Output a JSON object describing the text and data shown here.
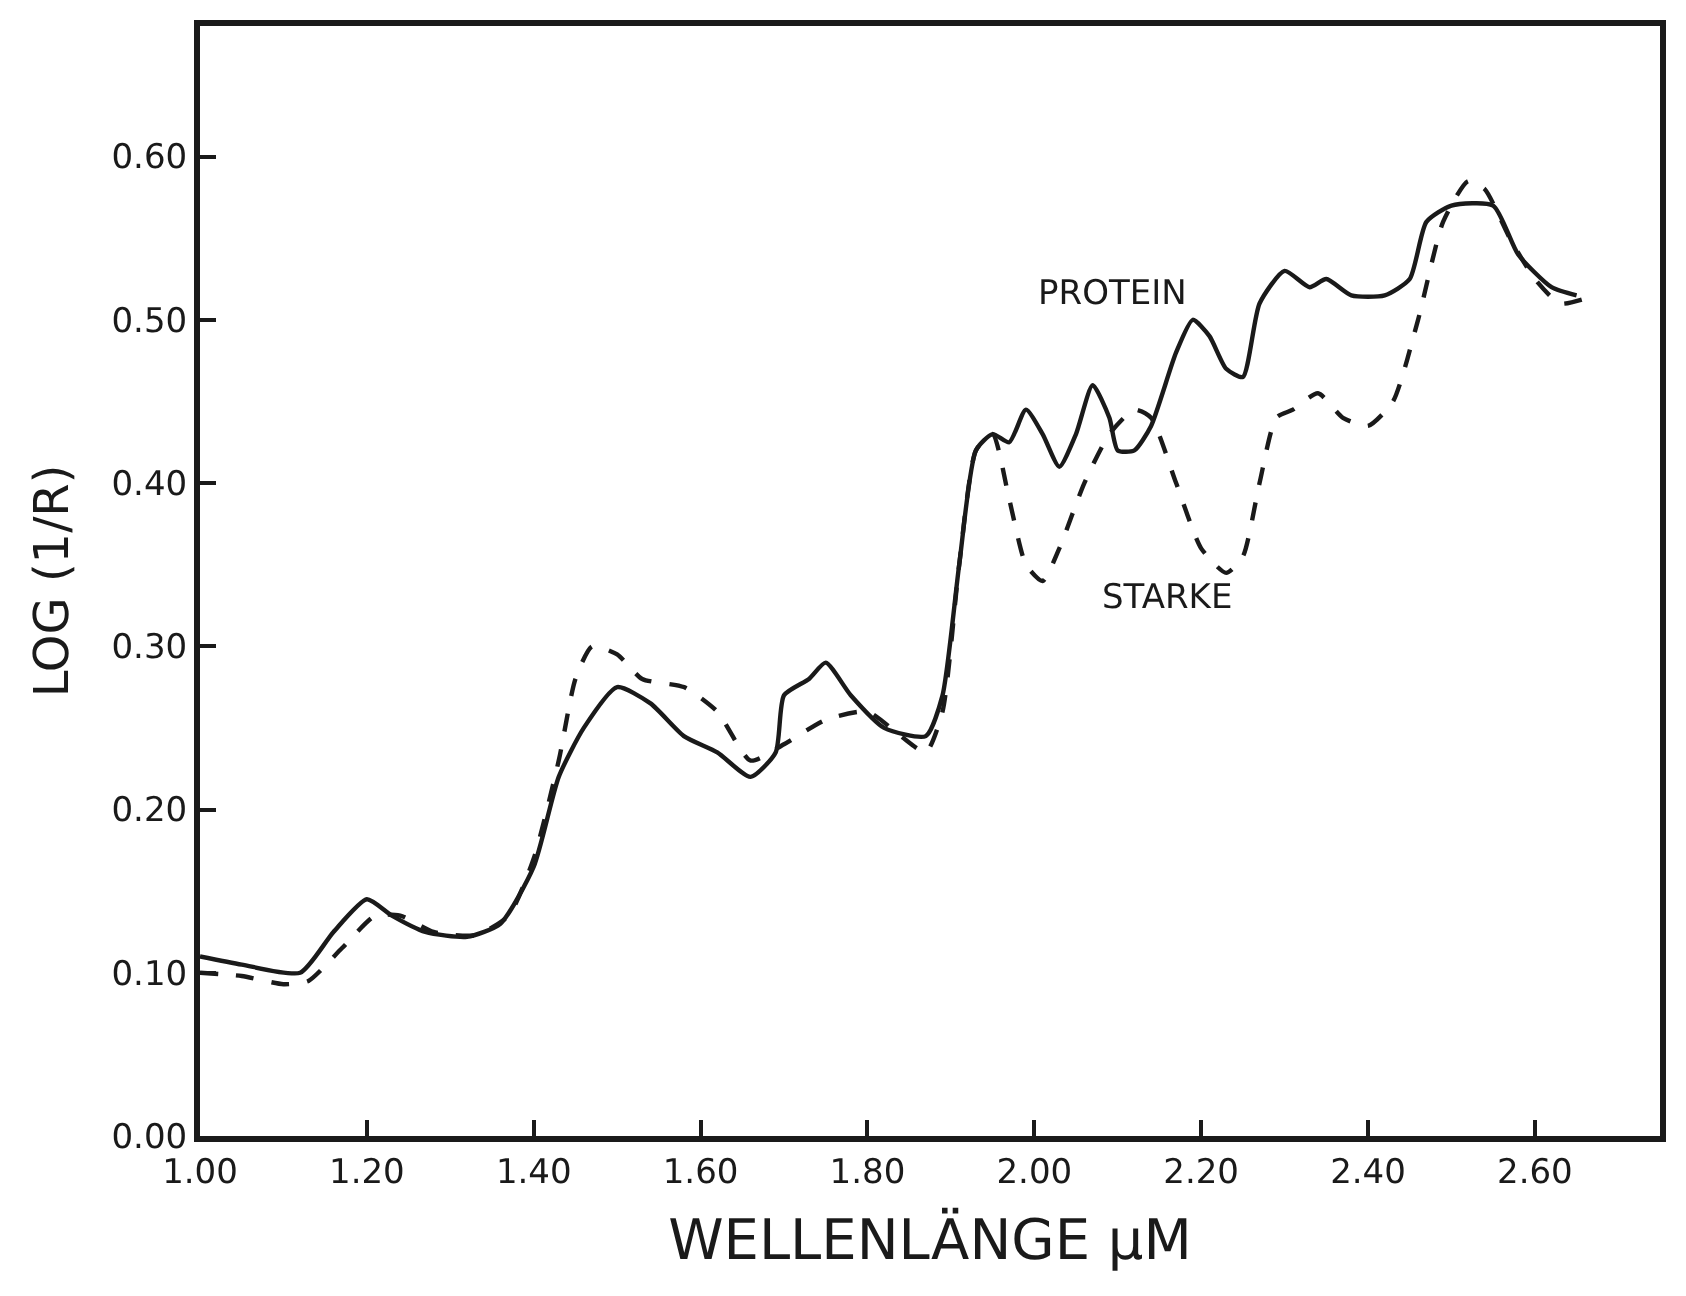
{
  "chart_data": {
    "type": "line",
    "xlabel": "WELLENLÄNGE µM",
    "ylabel": "LOG (1/R)",
    "xlim": [
      1.0,
      2.75
    ],
    "ylim": [
      0,
      0.68
    ],
    "xticks": [
      {
        "value": 1.0,
        "label": "1.00"
      },
      {
        "value": 1.2,
        "label": "1.20"
      },
      {
        "value": 1.4,
        "label": "1.40"
      },
      {
        "value": 1.6,
        "label": "1.60"
      },
      {
        "value": 1.8,
        "label": "1.80"
      },
      {
        "value": 2.0,
        "label": "2.00"
      },
      {
        "value": 2.2,
        "label": "2.20"
      },
      {
        "value": 2.4,
        "label": "2.40"
      },
      {
        "value": 2.6,
        "label": "2.60"
      }
    ],
    "yticks": [
      {
        "value": 0,
        "label": "0.00"
      },
      {
        "value": 0.1,
        "label": "0.10"
      },
      {
        "value": 0.2,
        "label": "0.20"
      },
      {
        "value": 0.3,
        "label": "0.30"
      },
      {
        "value": 0.4,
        "label": "0.40"
      },
      {
        "value": 0.5,
        "label": "0.50"
      },
      {
        "value": 0.6,
        "label": "0.60"
      }
    ],
    "marker": "none",
    "series": [
      {
        "color": "#1a1a1a",
        "line_style": "solid",
        "x": [
          1.0,
          1.05,
          1.12,
          1.16,
          1.2,
          1.23,
          1.27,
          1.32,
          1.36,
          1.4,
          1.43,
          1.46,
          1.5,
          1.54,
          1.58,
          1.62,
          1.66,
          1.69,
          1.7,
          1.73,
          1.75,
          1.78,
          1.82,
          1.87,
          1.89,
          1.91,
          1.93,
          1.95,
          1.97,
          1.99,
          2.01,
          2.03,
          2.05,
          2.07,
          2.09,
          2.1,
          2.12,
          2.14,
          2.17,
          2.19,
          2.21,
          2.23,
          2.25,
          2.27,
          2.3,
          2.33,
          2.35,
          2.38,
          2.42,
          2.45,
          2.47,
          2.5,
          2.55,
          2.58,
          2.62,
          2.65
        ],
        "values": [
          0.11,
          0.105,
          0.1,
          0.125,
          0.145,
          0.135,
          0.125,
          0.122,
          0.13,
          0.165,
          0.22,
          0.25,
          0.275,
          0.265,
          0.245,
          0.235,
          0.22,
          0.235,
          0.27,
          0.28,
          0.29,
          0.27,
          0.25,
          0.245,
          0.27,
          0.35,
          0.42,
          0.43,
          0.425,
          0.445,
          0.43,
          0.41,
          0.43,
          0.46,
          0.44,
          0.42,
          0.42,
          0.435,
          0.48,
          0.5,
          0.49,
          0.47,
          0.465,
          0.51,
          0.53,
          0.52,
          0.525,
          0.515,
          0.515,
          0.525,
          0.56,
          0.57,
          0.57,
          0.54,
          0.52,
          0.515
        ]
      },
      {
        "color": "#1a1a1a",
        "line_style": "dashed",
        "x": [
          1.0,
          1.05,
          1.1,
          1.13,
          1.17,
          1.21,
          1.24,
          1.28,
          1.33,
          1.37,
          1.4,
          1.43,
          1.45,
          1.47,
          1.5,
          1.53,
          1.58,
          1.62,
          1.66,
          1.7,
          1.75,
          1.8,
          1.84,
          1.87,
          1.89,
          1.91,
          1.93,
          1.95,
          1.97,
          1.99,
          2.01,
          2.03,
          2.06,
          2.09,
          2.12,
          2.14,
          2.17,
          2.2,
          2.23,
          2.25,
          2.27,
          2.29,
          2.31,
          2.34,
          2.37,
          2.4,
          2.43,
          2.46,
          2.49,
          2.52,
          2.54,
          2.57,
          2.6,
          2.63,
          2.66
        ],
        "values": [
          0.1,
          0.098,
          0.093,
          0.095,
          0.115,
          0.135,
          0.135,
          0.125,
          0.123,
          0.135,
          0.17,
          0.23,
          0.28,
          0.3,
          0.295,
          0.28,
          0.275,
          0.26,
          0.23,
          0.24,
          0.255,
          0.26,
          0.245,
          0.235,
          0.26,
          0.35,
          0.42,
          0.43,
          0.39,
          0.35,
          0.34,
          0.36,
          0.4,
          0.43,
          0.445,
          0.44,
          0.4,
          0.36,
          0.345,
          0.355,
          0.4,
          0.44,
          0.445,
          0.455,
          0.44,
          0.435,
          0.45,
          0.5,
          0.56,
          0.585,
          0.58,
          0.55,
          0.525,
          0.51,
          0.513
        ]
      }
    ],
    "annotations": [
      "PROTEIN",
      "STARKE"
    ]
  }
}
